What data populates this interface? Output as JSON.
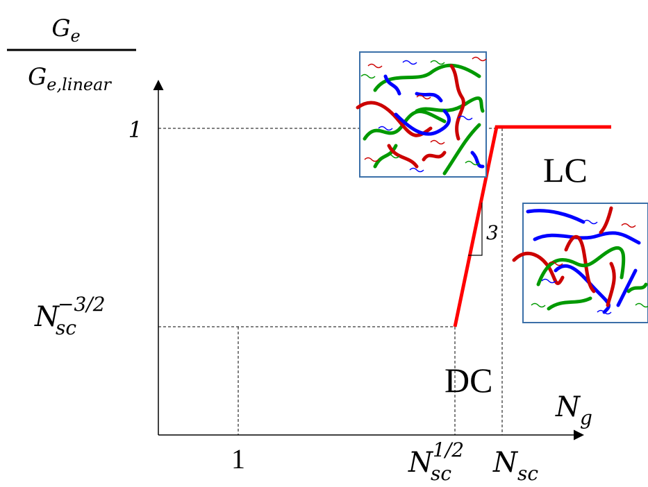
{
  "y_axis_label": {
    "numerator": {
      "base": "G",
      "sub": "e"
    },
    "denominator": {
      "base": "G",
      "sub": "e,linear"
    }
  },
  "y_ticks": [
    {
      "base": "1"
    },
    {
      "base": "N",
      "sub": "sc",
      "sup": "−3/2"
    }
  ],
  "x_ticks": [
    {
      "base": "1"
    },
    {
      "base": "N",
      "sub": "sc",
      "sup": "1/2"
    },
    {
      "base": "N",
      "sub": "sc"
    }
  ],
  "x_axis_label": {
    "base": "N",
    "sub": "g"
  },
  "regions": [
    "LC",
    "DC"
  ],
  "slope_label": "3"
}
